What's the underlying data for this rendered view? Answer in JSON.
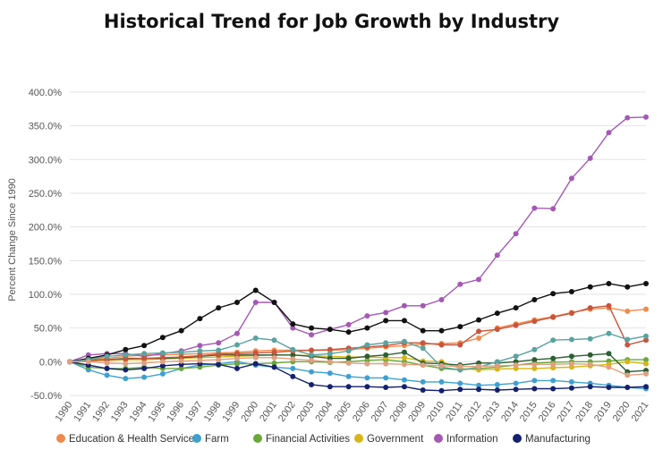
{
  "chart_data": {
    "type": "line",
    "title": "Historical Trend for Job Growth by Industry",
    "ylabel": "Percent Change Since 1990",
    "xlabel": "",
    "ylim": [
      -50,
      400
    ],
    "yticks": [
      -50,
      0,
      50,
      100,
      150,
      200,
      250,
      300,
      350,
      400
    ],
    "ytick_labels": [
      "-50.0%",
      "0.0%",
      "50.0%",
      "100.0%",
      "150.0%",
      "200.0%",
      "250.0%",
      "300.0%",
      "350.0%",
      "400.0%"
    ],
    "grid": true,
    "legend_position": "bottom",
    "x": [
      "1990",
      "1991",
      "1992",
      "1993",
      "1994",
      "1995",
      "1996",
      "1997",
      "1998",
      "1999",
      "2000",
      "2001",
      "2002",
      "2003",
      "2004",
      "2005",
      "2006",
      "2007",
      "2008",
      "2009",
      "2010",
      "2011",
      "2012",
      "2013",
      "2014",
      "2015",
      "2016",
      "2017",
      "2018",
      "2019",
      "2020",
      "2021"
    ],
    "series": [
      {
        "name": "Education & Health Services",
        "color": "#f08a4b",
        "legend": true,
        "values": [
          0,
          3,
          5,
          8,
          10,
          10,
          11,
          12,
          13,
          14,
          16,
          17,
          17,
          17,
          17,
          18,
          20,
          22,
          24,
          26,
          27,
          28,
          35,
          50,
          56,
          62,
          67,
          73,
          78,
          80,
          75,
          78
        ]
      },
      {
        "name": "Farm",
        "color": "#3fa0d0",
        "legend": true,
        "values": [
          0,
          -12,
          -20,
          -25,
          -23,
          -18,
          -10,
          -5,
          -3,
          0,
          -5,
          -8,
          -10,
          -15,
          -17,
          -22,
          -24,
          -24,
          -27,
          -30,
          -30,
          -32,
          -35,
          -34,
          -32,
          -28,
          -28,
          -30,
          -32,
          -35,
          -38,
          -40
        ]
      },
      {
        "name": "Financial Activities",
        "color": "#6aa83a",
        "legend": true,
        "values": [
          0,
          -8,
          -10,
          -10,
          -8,
          -10,
          -10,
          -8,
          -5,
          -3,
          -3,
          -2,
          0,
          0,
          -1,
          0,
          2,
          3,
          0,
          -5,
          -10,
          -12,
          -10,
          -8,
          -5,
          -2,
          -1,
          0,
          0,
          1,
          3,
          3
        ]
      },
      {
        "name": "Government",
        "color": "#d8b515",
        "legend": true,
        "values": [
          0,
          1,
          2,
          3,
          3,
          4,
          5,
          6,
          7,
          8,
          9,
          10,
          10,
          9,
          8,
          7,
          7,
          6,
          6,
          1,
          0,
          -10,
          -12,
          -11,
          -10,
          -10,
          -9,
          -8,
          -6,
          -4,
          0,
          -3
        ]
      },
      {
        "name": "Information",
        "color": "#a459b4",
        "legend": true,
        "values": [
          0,
          10,
          12,
          12,
          8,
          12,
          16,
          24,
          28,
          42,
          88,
          88,
          50,
          40,
          48,
          55,
          68,
          73,
          83,
          83,
          92,
          115,
          122,
          158,
          190,
          228,
          227,
          272,
          302,
          340,
          362,
          363
        ]
      },
      {
        "name": "Manufacturing",
        "color": "#15216e",
        "legend": true,
        "values": [
          0,
          -5,
          -10,
          -12,
          -10,
          -6,
          -4,
          -3,
          -4,
          -10,
          -3,
          -8,
          -22,
          -34,
          -37,
          -37,
          -37,
          -38,
          -37,
          -42,
          -43,
          -41,
          -41,
          -42,
          -41,
          -40,
          -40,
          -39,
          -37,
          -38,
          -38,
          -37
        ]
      },
      {
        "name": "",
        "color": "#111111",
        "legend": false,
        "values": [
          0,
          5,
          10,
          18,
          24,
          36,
          46,
          64,
          80,
          88,
          106,
          88,
          56,
          50,
          48,
          44,
          50,
          61,
          61,
          46,
          46,
          52,
          62,
          72,
          80,
          92,
          101,
          104,
          111,
          116,
          111,
          116
        ]
      },
      {
        "name": "",
        "color": "#2c5f33",
        "legend": false,
        "values": [
          0,
          2,
          3,
          5,
          5,
          5,
          6,
          8,
          10,
          10,
          10,
          10,
          10,
          8,
          5,
          5,
          8,
          10,
          14,
          -2,
          -3,
          -5,
          -2,
          -2,
          0,
          3,
          5,
          8,
          10,
          12,
          -15,
          -13
        ]
      },
      {
        "name": "",
        "color": "#c8553d",
        "legend": false,
        "values": [
          0,
          2,
          3,
          4,
          5,
          6,
          7,
          9,
          11,
          12,
          13,
          14,
          16,
          17,
          18,
          20,
          22,
          24,
          28,
          28,
          25,
          25,
          45,
          48,
          54,
          60,
          66,
          72,
          80,
          83,
          25,
          32
        ]
      },
      {
        "name": "",
        "color": "#5aa3a0",
        "legend": false,
        "values": [
          0,
          3,
          8,
          10,
          12,
          13,
          14,
          16,
          17,
          25,
          35,
          32,
          18,
          10,
          12,
          16,
          25,
          28,
          30,
          20,
          -8,
          -12,
          -8,
          0,
          8,
          18,
          32,
          33,
          34,
          42,
          33,
          38
        ]
      },
      {
        "name": "",
        "color": "#e0a080",
        "legend": false,
        "values": [
          0,
          0,
          -2,
          -3,
          -2,
          0,
          1,
          2,
          3,
          5,
          6,
          6,
          4,
          2,
          0,
          -2,
          -3,
          -3,
          -4,
          -5,
          -6,
          -7,
          -7,
          -6,
          -5,
          -4,
          -4,
          -3,
          -4,
          -8,
          -20,
          -18
        ]
      }
    ]
  }
}
